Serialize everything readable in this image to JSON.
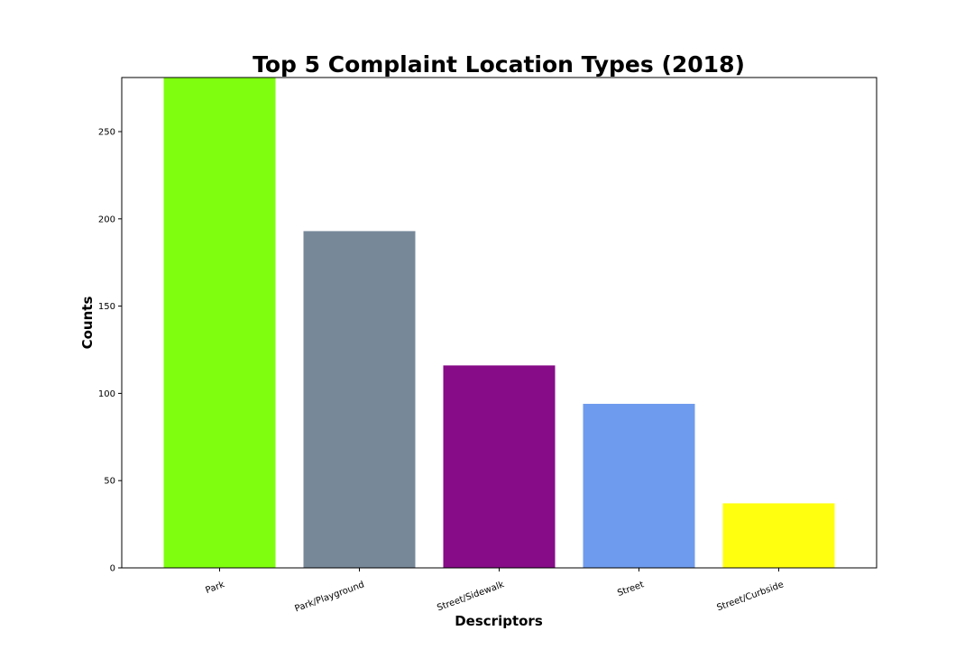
{
  "chart_data": {
    "type": "bar",
    "title": "Top 5 Complaint Location Types (2018)",
    "xlabel": "Descriptors",
    "ylabel": "Counts",
    "categories": [
      "Park",
      "Park/Playground",
      "Street/Sidewalk",
      "Street",
      "Street/Curbside"
    ],
    "values": [
      283,
      193,
      116,
      94,
      37
    ],
    "colors": [
      "#7fff0f",
      "#778899",
      "#870c87",
      "#6f9bee",
      "#ffff0f"
    ],
    "ylim": [
      0,
      281
    ],
    "yticks": [
      0,
      50,
      100,
      150,
      200,
      250
    ],
    "xtick_rotation": "angled",
    "grid": false,
    "legend": "none"
  }
}
